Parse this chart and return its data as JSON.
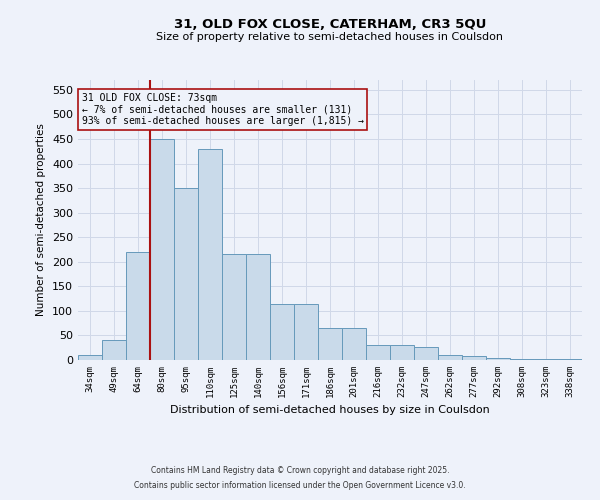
{
  "title1": "31, OLD FOX CLOSE, CATERHAM, CR3 5QU",
  "title2": "Size of property relative to semi-detached houses in Coulsdon",
  "xlabel": "Distribution of semi-detached houses by size in Coulsdon",
  "ylabel": "Number of semi-detached properties",
  "categories": [
    "34sqm",
    "49sqm",
    "64sqm",
    "80sqm",
    "95sqm",
    "110sqm",
    "125sqm",
    "140sqm",
    "156sqm",
    "171sqm",
    "186sqm",
    "201sqm",
    "216sqm",
    "232sqm",
    "247sqm",
    "262sqm",
    "277sqm",
    "292sqm",
    "308sqm",
    "323sqm",
    "338sqm"
  ],
  "values": [
    10,
    40,
    220,
    450,
    350,
    430,
    215,
    215,
    115,
    115,
    65,
    65,
    30,
    30,
    27,
    10,
    8,
    5,
    3,
    3,
    3
  ],
  "bar_color": "#c9daea",
  "bar_edge_color": "#6699bb",
  "grid_color": "#d0d8e8",
  "background_color": "#eef2fa",
  "vline_x": 2.5,
  "vline_color": "#aa1111",
  "annotation_text": "31 OLD FOX CLOSE: 73sqm\n← 7% of semi-detached houses are smaller (131)\n93% of semi-detached houses are larger (1,815) →",
  "ylim": [
    0,
    570
  ],
  "yticks": [
    0,
    50,
    100,
    150,
    200,
    250,
    300,
    350,
    400,
    450,
    500,
    550
  ],
  "footer1": "Contains HM Land Registry data © Crown copyright and database right 2025.",
  "footer2": "Contains public sector information licensed under the Open Government Licence v3.0."
}
